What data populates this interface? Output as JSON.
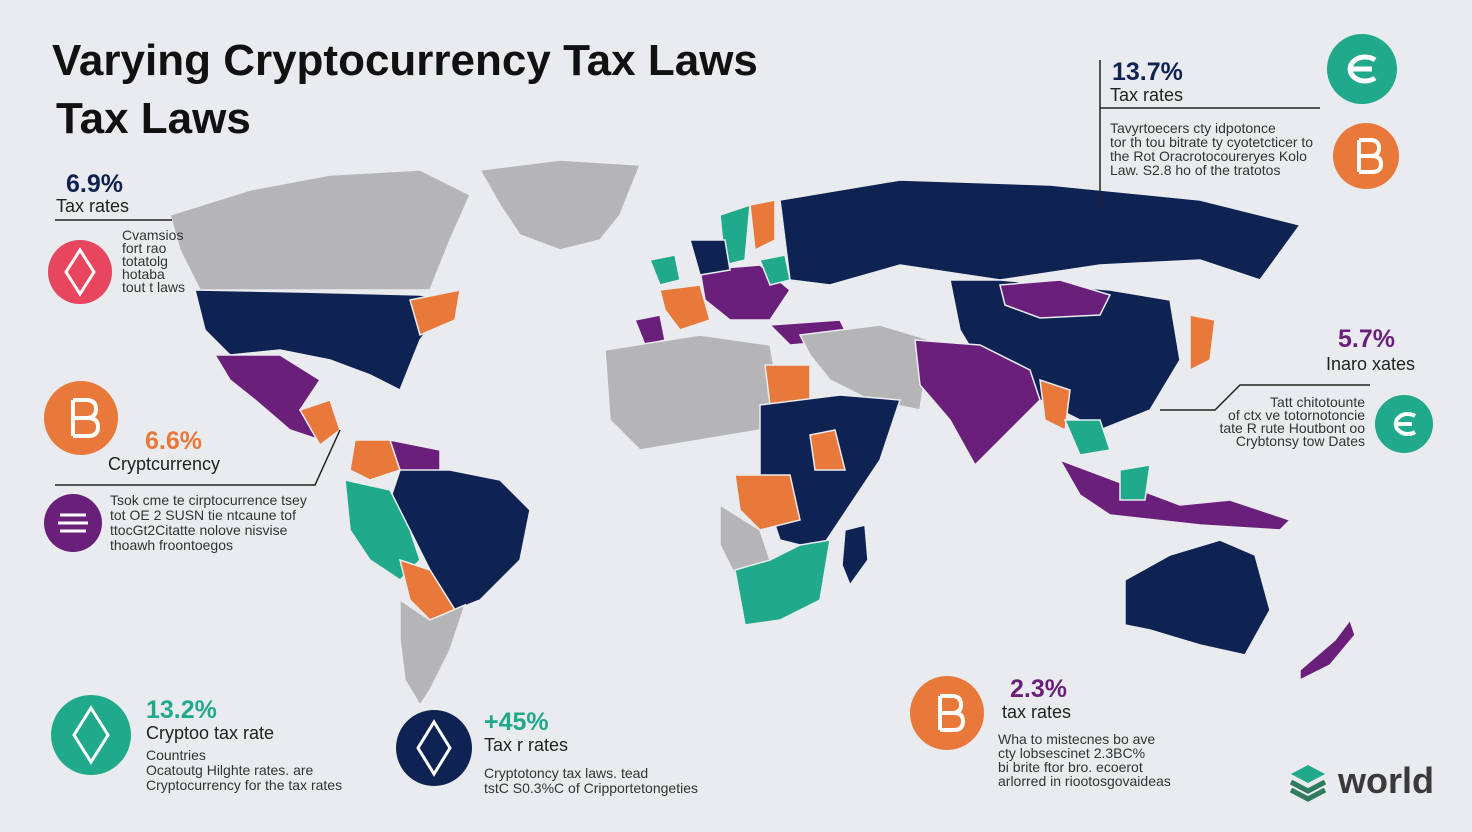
{
  "header": {
    "title_line1": "Varying Cryptocurrency Tax Laws",
    "title_line2": "Tax Laws"
  },
  "callouts": [
    {
      "value": "6.9%",
      "label": "Tax rates",
      "lines": [
        "Cvamsios",
        "fort rao",
        "totatolg",
        "hotaba",
        "tout t laws"
      ]
    },
    {
      "value": "6.6%",
      "label": "Cryptcurrency",
      "lines": [
        "Tsok cme te cirptocurrence tsey",
        "tot OE 2 SUSN tie ntcaune tof",
        "ttocGt2Citatte nolove nisvise",
        "thoawh froontoegos"
      ]
    },
    {
      "value": "13.2%",
      "label": "Cryptoo tax rate",
      "lines": [
        "Countries",
        "Ocatoutg Hilghte rates. are",
        "Cryptocurrency for the tax rates"
      ]
    },
    {
      "value": "+45%",
      "label": "Tax r rates",
      "lines": [
        "Cryptotoncy tax laws. tead",
        "tstC S0.3%C of Cripportetongeties"
      ]
    },
    {
      "value": "13.7%",
      "label": "Tax rates",
      "lines": [
        "Tavyrtoecers cty idpotonce",
        "tor th tou bitrate ty cyotetcticer to",
        "the Rot Oracrotocoureryes Kolo",
        "Law. S2.8 ho of the tratotos"
      ]
    },
    {
      "value": "5.7%",
      "label": "Inaro xates",
      "lines": [
        "Tatt chitotounte",
        "of ctx ve totornotoncie",
        "tate R rute Houtbont oo",
        "Crybtonsy tow Dates"
      ]
    },
    {
      "value": "2.3%",
      "label": "tax rates",
      "lines": [
        "Wha to mistecnes bo ave",
        "cty lobsescinet 2.3BC%",
        "bi brite ftor bro. ecoerot",
        "arlorred in riootosgovaideas"
      ]
    }
  ],
  "logo": {
    "text": "world"
  }
}
